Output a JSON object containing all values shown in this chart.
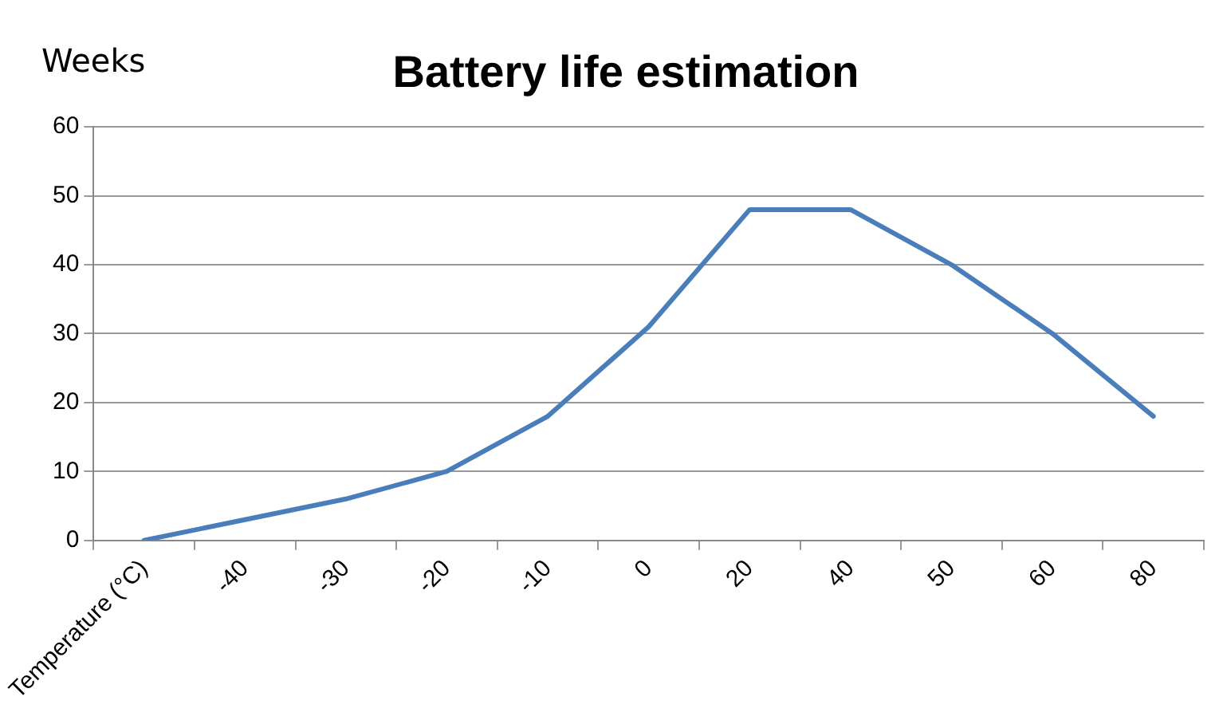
{
  "chart_data": {
    "type": "line",
    "title": "Battery life estimation",
    "ylabel": "Weeks",
    "categories": [
      "Temperature (°C)",
      "-40",
      "-30",
      "-20",
      "-10",
      "0",
      "20",
      "40",
      "50",
      "60",
      "80"
    ],
    "series": [
      {
        "color": "#4a7ebb",
        "values": [
          0,
          3,
          6,
          10,
          18,
          31,
          48,
          48,
          40,
          30,
          18
        ]
      }
    ],
    "ylim": [
      0,
      60
    ],
    "yticks": [
      0,
      10,
      20,
      30,
      40,
      50,
      60
    ],
    "grid": "y",
    "legend": false,
    "marker": "none",
    "line_style": "solid"
  }
}
